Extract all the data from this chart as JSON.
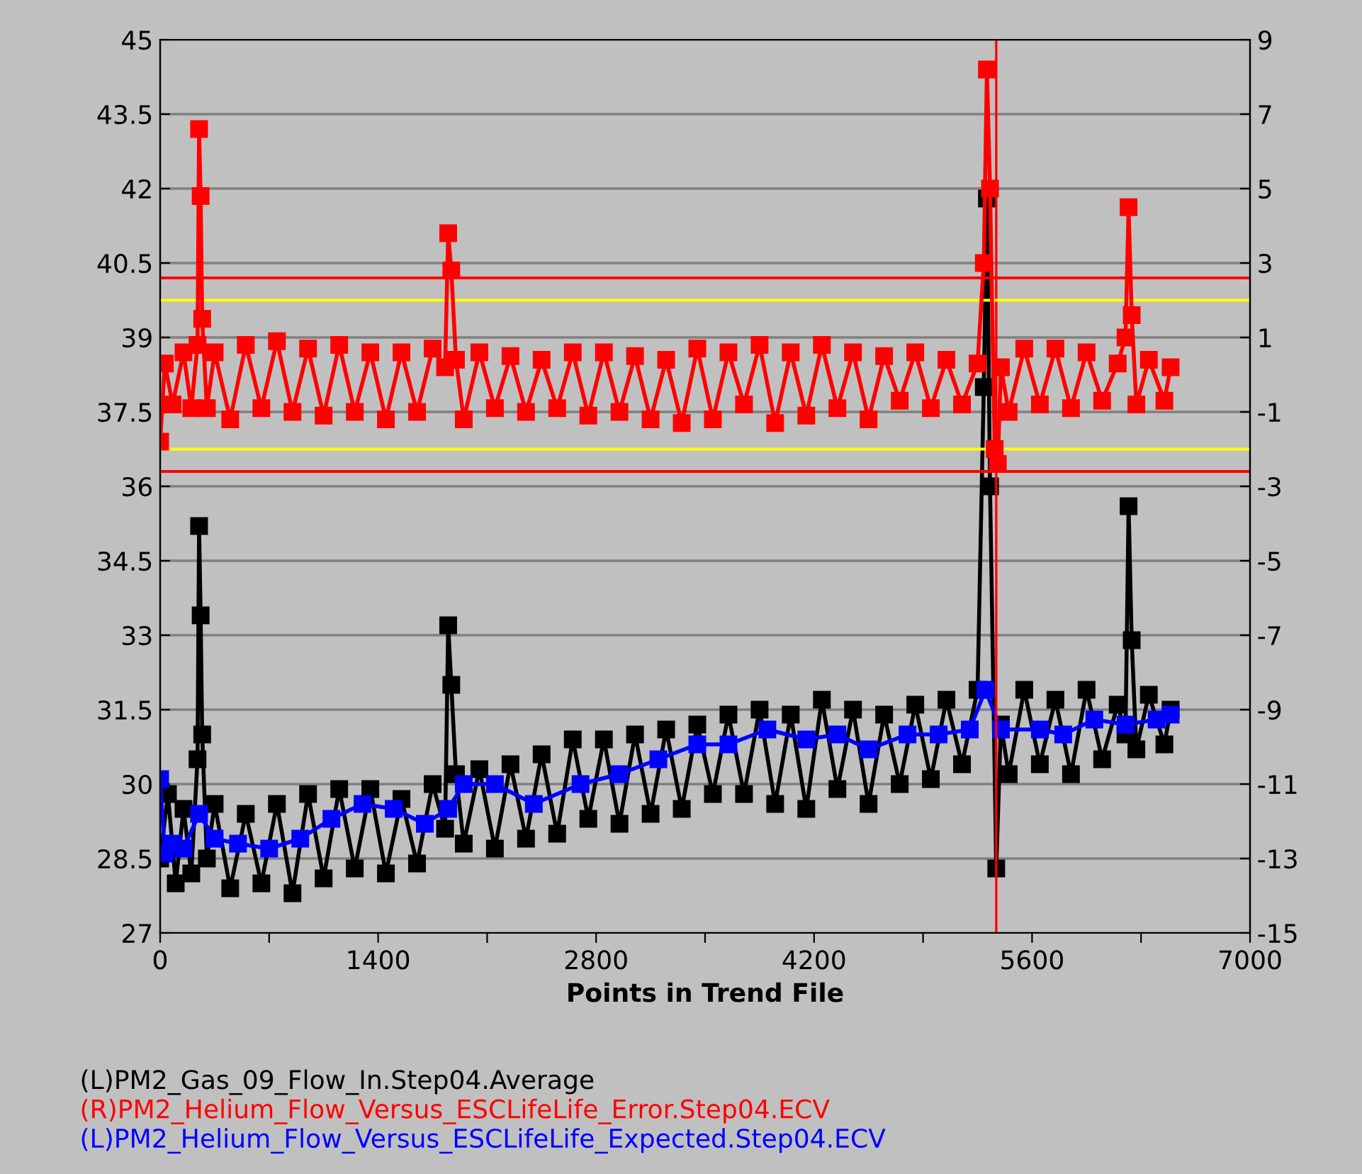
{
  "chart_data": {
    "type": "line",
    "xlabel": "Points in Trend File",
    "xlim": [
      0,
      7000
    ],
    "xticks": [
      0,
      {
        "value": 700,
        "label": null
      },
      1400,
      {
        "value": 2100,
        "label": null
      },
      2800,
      {
        "value": 3500,
        "label": null
      },
      4200,
      {
        "value": 4900,
        "label": null
      },
      5600,
      {
        "value": 6300,
        "label": null
      },
      7000
    ],
    "ylim": [
      27,
      45
    ],
    "yticks": [
      27,
      28.5,
      30,
      31.5,
      33,
      34.5,
      36,
      37.5,
      39,
      40.5,
      42,
      43.5,
      45
    ],
    "y2lim": [
      -15,
      9
    ],
    "y2ticks": [
      -15,
      -13,
      -11,
      -9,
      -7,
      -5,
      -3,
      -1,
      1,
      3,
      5,
      7,
      9
    ],
    "grid": "y",
    "legend": "bottom",
    "marker": "square",
    "line_style": "solid",
    "ref_lines": [
      {
        "axis": "y2",
        "value": 2.6,
        "color": "#ff0000"
      },
      {
        "axis": "y2",
        "value": -2.6,
        "color": "#ff0000"
      },
      {
        "axis": "y2",
        "value": 2,
        "color": "#ffff00"
      },
      {
        "axis": "y2",
        "value": -2,
        "color": "#ffff00"
      },
      {
        "axis": "x",
        "value": 5370,
        "color": "#ff0000"
      }
    ],
    "series": [
      {
        "name": "(L)PM2_Gas_09_Flow_In.Step04.Average",
        "color": "#000000",
        "x": [
          0,
          50,
          100,
          150,
          200,
          240,
          250,
          260,
          270,
          300,
          350,
          450,
          550,
          650,
          750,
          850,
          950,
          1050,
          1150,
          1250,
          1350,
          1450,
          1550,
          1650,
          1750,
          1830,
          1850,
          1870,
          1900,
          1950,
          2050,
          2150,
          2250,
          2350,
          2450,
          2550,
          2650,
          2750,
          2850,
          2950,
          3050,
          3150,
          3250,
          3350,
          3450,
          3550,
          3650,
          3750,
          3850,
          3950,
          4050,
          4150,
          4250,
          4350,
          4450,
          4550,
          4650,
          4750,
          4850,
          4950,
          5050,
          5150,
          5250,
          5290,
          5310,
          5330,
          5370,
          5400,
          5450,
          5550,
          5650,
          5750,
          5850,
          5950,
          6050,
          6150,
          6200,
          6220,
          6240,
          6270,
          6350,
          6450,
          6490
        ],
        "values": [
          28.5,
          29.8,
          28.0,
          29.5,
          28.2,
          30.5,
          35.2,
          33.4,
          31.0,
          28.5,
          29.6,
          27.9,
          29.4,
          28.0,
          29.6,
          27.8,
          29.8,
          28.1,
          29.9,
          28.3,
          29.9,
          28.2,
          29.7,
          28.4,
          30.0,
          29.1,
          33.2,
          32.0,
          30.2,
          28.8,
          30.3,
          28.7,
          30.4,
          28.9,
          30.6,
          29.0,
          30.9,
          29.3,
          30.9,
          29.2,
          31.0,
          29.4,
          31.1,
          29.5,
          31.2,
          29.8,
          31.4,
          29.8,
          31.5,
          29.6,
          31.4,
          29.5,
          31.7,
          29.9,
          31.5,
          29.6,
          31.4,
          30.0,
          31.6,
          30.1,
          31.7,
          30.4,
          31.9,
          38.0,
          41.8,
          36.0,
          28.3,
          31.2,
          30.2,
          31.9,
          30.4,
          31.7,
          30.2,
          31.9,
          30.5,
          31.6,
          31.0,
          35.6,
          32.9,
          30.7,
          31.8,
          30.8,
          31.5
        ]
      },
      {
        "name": "(R)PM2_Helium_Flow_Versus_ESCLifeLife_Error.Step04.ECV",
        "color": "#ff0000",
        "axis": "y2",
        "x": [
          0,
          30,
          80,
          150,
          200,
          240,
          250,
          260,
          270,
          300,
          350,
          450,
          550,
          650,
          750,
          850,
          950,
          1050,
          1150,
          1250,
          1350,
          1450,
          1550,
          1650,
          1750,
          1830,
          1850,
          1870,
          1900,
          1950,
          2050,
          2150,
          2250,
          2350,
          2450,
          2550,
          2650,
          2750,
          2850,
          2950,
          3050,
          3150,
          3250,
          3350,
          3450,
          3550,
          3650,
          3750,
          3850,
          3950,
          4050,
          4150,
          4250,
          4350,
          4450,
          4550,
          4650,
          4750,
          4850,
          4950,
          5050,
          5150,
          5250,
          5290,
          5310,
          5330,
          5360,
          5380,
          5400,
          5450,
          5550,
          5650,
          5750,
          5850,
          5950,
          6050,
          6150,
          6200,
          6220,
          6240,
          6270,
          6350,
          6450,
          6490
        ],
        "values": [
          -1.8,
          0.3,
          -0.8,
          0.6,
          -0.9,
          0.8,
          6.6,
          4.8,
          1.5,
          -0.9,
          0.6,
          -1.2,
          0.8,
          -0.9,
          0.9,
          -1.0,
          0.7,
          -1.1,
          0.8,
          -1.0,
          0.6,
          -1.2,
          0.6,
          -1.0,
          0.7,
          0.2,
          3.8,
          2.8,
          0.4,
          -1.2,
          0.6,
          -0.9,
          0.5,
          -1.0,
          0.4,
          -0.9,
          0.6,
          -1.1,
          0.6,
          -1.0,
          0.5,
          -1.2,
          0.4,
          -1.3,
          0.7,
          -1.2,
          0.6,
          -0.8,
          0.8,
          -1.3,
          0.6,
          -1.1,
          0.8,
          -0.9,
          0.6,
          -1.2,
          0.5,
          -0.7,
          0.6,
          -0.9,
          0.4,
          -0.8,
          0.3,
          3.0,
          8.2,
          5.0,
          -2.0,
          -2.4,
          0.2,
          -1.0,
          0.7,
          -0.8,
          0.7,
          -0.9,
          0.6,
          -0.7,
          0.3,
          1.0,
          4.5,
          1.6,
          -0.8,
          0.4,
          -0.7,
          0.2
        ]
      },
      {
        "name": "(L)PM2_Helium_Flow_Versus_ESCLifeLife_Expected.Step04.ECV",
        "color": "#0000ff",
        "x": [
          0,
          30,
          80,
          150,
          250,
          350,
          500,
          700,
          900,
          1100,
          1300,
          1500,
          1700,
          1850,
          1950,
          2150,
          2400,
          2700,
          2950,
          3200,
          3450,
          3650,
          3900,
          4150,
          4350,
          4550,
          4800,
          5000,
          5200,
          5300,
          5400,
          5650,
          5800,
          6000,
          6200,
          6400,
          6490
        ],
        "values": [
          30.1,
          28.6,
          28.8,
          28.7,
          29.4,
          28.9,
          28.8,
          28.7,
          28.9,
          29.3,
          29.6,
          29.5,
          29.2,
          29.5,
          30.0,
          30.0,
          29.6,
          30.0,
          30.2,
          30.5,
          30.8,
          30.8,
          31.1,
          30.9,
          31.0,
          30.7,
          31.0,
          31.0,
          31.1,
          31.9,
          31.1,
          31.1,
          31.0,
          31.3,
          31.2,
          31.3,
          31.4
        ]
      }
    ]
  }
}
